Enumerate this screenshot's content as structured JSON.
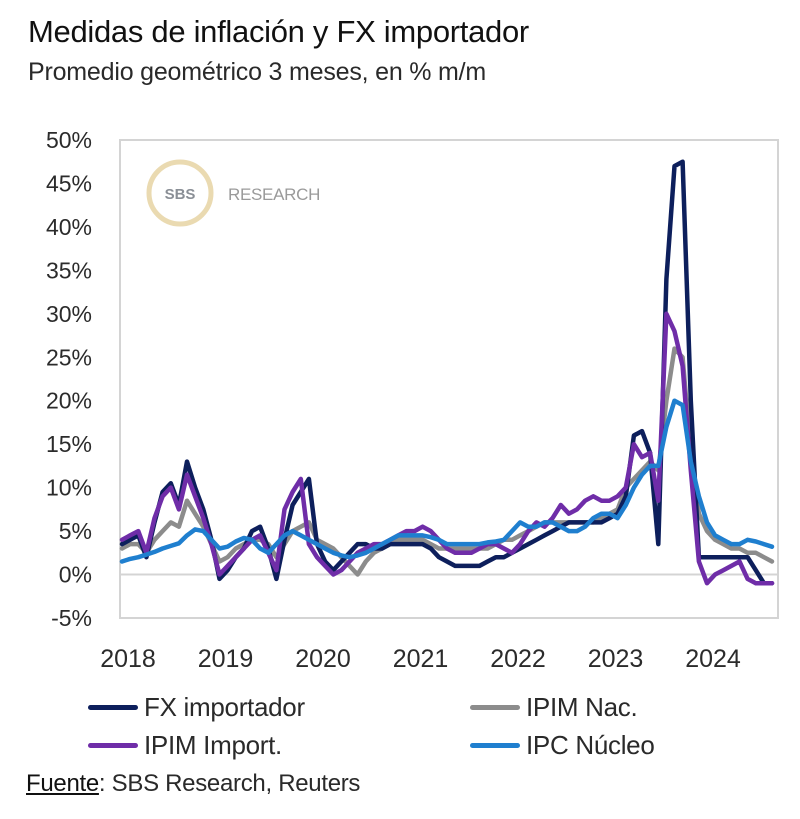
{
  "header": {
    "title": "Medidas de inflación y FX importador",
    "subtitle": "Promedio geométrico 3 meses, en % m/m"
  },
  "watermark": {
    "badge": "SBS",
    "text": "RESEARCH"
  },
  "source": {
    "label": "Fuente",
    "text": ": SBS Research,  Reuters"
  },
  "chart_data": {
    "type": "line",
    "title": "Medidas de inflación y FX importador",
    "subtitle": "Promedio geométrico 3 meses, en % m/m",
    "xlabel": "",
    "ylabel": "",
    "ylim": [
      -5,
      50
    ],
    "xlim": [
      "2018-01",
      "2024-09"
    ],
    "y_ticks": [
      50,
      45,
      40,
      35,
      30,
      25,
      20,
      15,
      10,
      5,
      0,
      -5
    ],
    "y_tick_labels": [
      "50%",
      "45%",
      "40%",
      "35%",
      "30%",
      "25%",
      "20%",
      "15%",
      "10%",
      "5%",
      "0%",
      "-5%"
    ],
    "x_tick_labels": [
      "2018",
      "2019",
      "2020",
      "2021",
      "2022",
      "2023",
      "2024"
    ],
    "grid": false,
    "zero_line": true,
    "legend_position": "bottom",
    "frequency": "monthly",
    "start": "2018-01",
    "series": [
      {
        "name": "FX importador",
        "color": "#0d1f5c",
        "values": [
          3.5,
          4.0,
          4.5,
          2.0,
          6.0,
          9.5,
          10.5,
          8.0,
          13.0,
          10.0,
          7.5,
          4.0,
          -0.5,
          0.5,
          2.0,
          3.0,
          5.0,
          5.5,
          3.0,
          -0.5,
          4.0,
          8.0,
          9.5,
          11.0,
          3.5,
          1.5,
          0.5,
          1.5,
          2.5,
          3.5,
          3.5,
          3.0,
          3.0,
          3.5,
          3.5,
          3.5,
          3.5,
          3.5,
          3.0,
          2.0,
          1.5,
          1.0,
          1.0,
          1.0,
          1.0,
          1.5,
          2.0,
          2.0,
          2.5,
          3.0,
          3.5,
          4.0,
          4.5,
          5.0,
          5.5,
          6.0,
          6.0,
          6.0,
          6.0,
          6.0,
          6.5,
          7.0,
          9.0,
          16.0,
          16.5,
          14.0,
          3.5,
          34.0,
          47.0,
          47.5,
          20.0,
          2.0,
          2.0,
          2.0,
          2.0,
          2.0,
          2.0,
          2.0,
          0.5,
          -1.0,
          -1.0
        ]
      },
      {
        "name": "IPIM Nac.",
        "color": "#8c8c8c",
        "values": [
          3.0,
          3.5,
          3.5,
          2.5,
          4.0,
          5.0,
          6.0,
          5.5,
          8.5,
          7.0,
          5.5,
          3.5,
          1.5,
          2.0,
          3.0,
          3.5,
          4.0,
          4.0,
          3.5,
          2.0,
          3.5,
          5.0,
          5.5,
          6.0,
          4.0,
          3.5,
          3.0,
          2.0,
          1.0,
          0.0,
          1.5,
          2.5,
          3.0,
          3.5,
          4.0,
          4.0,
          4.0,
          4.0,
          3.5,
          3.0,
          3.0,
          3.0,
          3.0,
          3.0,
          3.0,
          3.0,
          3.5,
          4.0,
          4.0,
          4.5,
          5.0,
          5.5,
          6.0,
          6.0,
          6.0,
          6.0,
          6.0,
          6.0,
          6.0,
          6.5,
          7.0,
          7.5,
          10.0,
          11.0,
          12.0,
          13.0,
          12.0,
          20.0,
          26.0,
          25.0,
          14.0,
          7.0,
          5.0,
          4.0,
          3.5,
          3.0,
          3.0,
          2.5,
          2.5,
          2.0,
          1.5
        ]
      },
      {
        "name": "IPIM Import.",
        "color": "#6f2da8",
        "values": [
          4.0,
          4.5,
          5.0,
          2.5,
          6.5,
          9.0,
          10.0,
          7.5,
          11.5,
          9.0,
          6.5,
          3.5,
          0.0,
          1.0,
          2.0,
          3.0,
          4.0,
          4.5,
          2.5,
          0.5,
          7.5,
          9.5,
          11.0,
          3.5,
          2.0,
          1.0,
          0.0,
          0.5,
          1.5,
          2.5,
          3.0,
          3.5,
          3.5,
          4.0,
          4.5,
          5.0,
          5.0,
          5.5,
          5.0,
          4.0,
          3.0,
          2.5,
          2.5,
          2.5,
          3.0,
          3.5,
          3.5,
          3.0,
          2.5,
          3.5,
          5.0,
          6.0,
          5.5,
          6.5,
          8.0,
          7.0,
          7.5,
          8.5,
          9.0,
          8.5,
          8.5,
          9.0,
          10.0,
          15.0,
          13.5,
          14.0,
          8.5,
          30.0,
          28.0,
          24.0,
          12.0,
          1.5,
          -1.0,
          0.0,
          0.5,
          1.0,
          1.5,
          -0.5,
          -1.0,
          -1.0,
          -1.0
        ]
      },
      {
        "name": "IPC Núcleo",
        "color": "#1f7fcf",
        "values": [
          1.5,
          1.8,
          2.0,
          2.3,
          2.6,
          3.0,
          3.3,
          3.6,
          4.5,
          5.2,
          5.0,
          4.0,
          3.0,
          3.2,
          3.8,
          4.2,
          4.0,
          3.0,
          2.5,
          3.5,
          4.5,
          5.0,
          4.5,
          4.0,
          3.5,
          3.0,
          2.5,
          2.2,
          2.0,
          2.2,
          2.5,
          3.0,
          3.5,
          4.0,
          4.5,
          4.5,
          4.5,
          4.5,
          4.3,
          4.0,
          3.5,
          3.5,
          3.5,
          3.5,
          3.5,
          3.7,
          3.8,
          4.0,
          5.0,
          6.0,
          5.5,
          5.5,
          6.0,
          6.0,
          5.5,
          5.0,
          5.0,
          5.5,
          6.5,
          7.0,
          7.0,
          6.5,
          8.0,
          10.0,
          11.5,
          12.5,
          12.5,
          17.0,
          20.0,
          19.5,
          13.0,
          9.0,
          6.0,
          4.5,
          4.0,
          3.5,
          3.5,
          4.0,
          3.8,
          3.5,
          3.2
        ]
      }
    ]
  }
}
